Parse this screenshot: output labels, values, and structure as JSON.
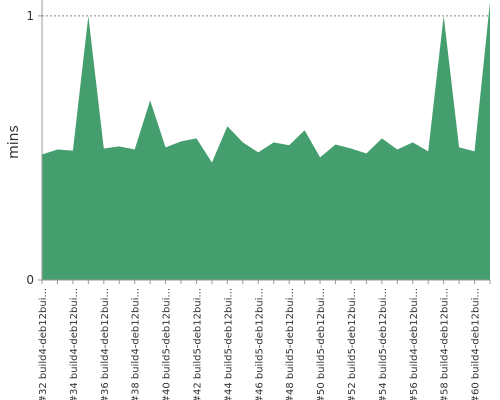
{
  "chart_data": {
    "type": "area",
    "ylabel": "mins",
    "color": "#459e6e",
    "categories": [
      "#32 build4-deb12bui...",
      null,
      "#34 build4-deb12bui...",
      null,
      "#36 build4-deb12bui...",
      null,
      "#38 build4-deb12bui...",
      null,
      "#40 build5-deb12bui...",
      null,
      "#42 build5-deb12bui...",
      null,
      "#44 build5-deb12bui...",
      null,
      "#46 build5-deb12bui...",
      null,
      "#48 build5-deb12bui...",
      null,
      "#50 build5-deb12bui...",
      null,
      "#52 build5-deb12bui...",
      null,
      "#54 build5-deb12bui...",
      null,
      "#56 build4-deb12bui...",
      null,
      "#58 build4-deb12bui...",
      null,
      "#60 build4-deb12bui...",
      null
    ],
    "values": [
      0.475,
      0.494,
      0.49,
      1.0,
      0.498,
      0.506,
      0.494,
      0.68,
      0.502,
      0.525,
      0.536,
      0.445,
      0.582,
      0.521,
      0.483,
      0.521,
      0.51,
      0.567,
      0.464,
      0.513,
      0.498,
      0.479,
      0.536,
      0.494,
      0.521,
      0.487,
      1.0,
      0.502,
      0.487,
      1.053
    ],
    "ylim": [
      0,
      1.06
    ],
    "yticks": [
      0,
      1
    ],
    "grid": true
  }
}
